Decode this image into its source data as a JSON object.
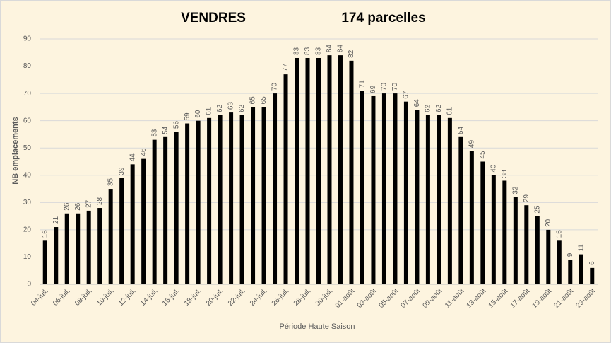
{
  "chart_data": {
    "type": "bar",
    "title": "VENDRES",
    "subtitle": "174 parcelles",
    "x_label": "Période Haute Saison",
    "y_label": "NB emplacements",
    "categories": [
      "04-juil.",
      null,
      "06-juil.",
      null,
      "08-juil.",
      null,
      "10-juil.",
      null,
      "12-juil.",
      null,
      "14-juil.",
      null,
      "16-juil.",
      null,
      "18-juil.",
      null,
      "20-juil.",
      null,
      "22-juil.",
      null,
      "24-juil.",
      null,
      "26-juil.",
      null,
      "28-juil.",
      null,
      "30-juil.",
      null,
      "01-août",
      null,
      "03-août",
      null,
      "05-août",
      null,
      "07-août",
      null,
      "09-août",
      null,
      "11-août",
      null,
      "13-août",
      null,
      "15-août",
      null,
      "17-août",
      null,
      "19-août",
      null,
      "21-août",
      null,
      "23-août"
    ],
    "values": [
      16,
      21,
      26,
      26,
      27,
      28,
      35,
      39,
      44,
      46,
      53,
      54,
      56,
      59,
      60,
      61,
      62,
      63,
      62,
      65,
      65,
      70,
      77,
      83,
      83,
      83,
      84,
      84,
      82,
      71,
      69,
      70,
      70,
      67,
      64,
      62,
      62,
      61,
      54,
      49,
      45,
      40,
      38,
      32,
      29,
      25,
      20,
      16,
      9,
      11,
      6
    ],
    "color": "#000000",
    "ylim": [
      0,
      90
    ],
    "yticks": [
      0,
      10,
      20,
      30,
      40,
      50,
      60,
      70,
      80,
      90
    ],
    "grid": true
  }
}
